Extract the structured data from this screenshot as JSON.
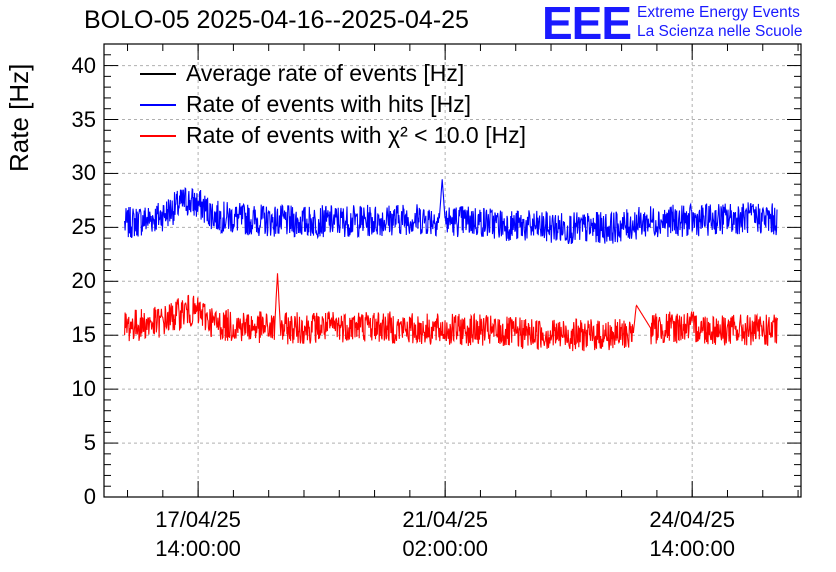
{
  "chart_data": {
    "type": "line",
    "title": "BOLO-05 2025-04-16--2025-04-25",
    "ylabel": "Rate [Hz]",
    "ylim": [
      0,
      42
    ],
    "yticks": [
      0,
      5,
      10,
      15,
      20,
      25,
      30,
      35,
      40
    ],
    "x_range": [
      "2025-04-16 06:00",
      "2025-04-26 03:00"
    ],
    "x_data_range": [
      "2025-04-16 13:00",
      "2025-04-25 19:00"
    ],
    "xticks": [
      {
        "date": "17/04/25",
        "time": "14:00:00"
      },
      {
        "date": "21/04/25",
        "time": "02:00:00"
      },
      {
        "date": "24/04/25",
        "time": "14:00:00"
      }
    ],
    "xtick_datetimes": [
      "2025-04-17 14:00",
      "2025-04-21 02:00",
      "2025-04-24 14:00"
    ],
    "grid": true,
    "legend_position": "top-left",
    "series": [
      {
        "name": "Average rate of events [Hz]",
        "color": "#000000",
        "values": []
      },
      {
        "name": "Rate of events with hits [Hz]",
        "color": "#0000ff",
        "x": [
          "2025-04-16 13:00",
          "2025-04-17 01:00",
          "2025-04-17 06:00",
          "2025-04-17 10:00",
          "2025-04-17 15:00",
          "2025-04-17 20:00",
          "2025-04-18 08:00",
          "2025-04-19 00:00",
          "2025-04-19 12:00",
          "2025-04-20 00:00",
          "2025-04-20 12:00",
          "2025-04-21 00:00",
          "2025-04-21 01:00",
          "2025-04-21 02:00",
          "2025-04-21 12:00",
          "2025-04-22 00:00",
          "2025-04-22 12:00",
          "2025-04-23 00:00",
          "2025-04-23 12:00",
          "2025-04-24 00:00",
          "2025-04-24 12:00",
          "2025-04-25 00:00",
          "2025-04-25 12:00",
          "2025-04-25 19:00"
        ],
        "values": [
          25.3,
          26.0,
          26.8,
          27.5,
          27.0,
          26.0,
          25.7,
          25.5,
          25.6,
          25.6,
          25.8,
          25.7,
          29.5,
          25.6,
          25.6,
          25.2,
          25.0,
          24.9,
          25.0,
          25.6,
          25.6,
          25.8,
          25.9,
          25.7
        ]
      },
      {
        "name": "Rate of events with χ² < 10.0 [Hz]",
        "color": "#ff0000",
        "x": [
          "2025-04-16 13:00",
          "2025-04-17 01:00",
          "2025-04-17 06:00",
          "2025-04-17 10:00",
          "2025-04-17 15:00",
          "2025-04-17 20:00",
          "2025-04-18 08:00",
          "2025-04-18 16:00",
          "2025-04-18 17:00",
          "2025-04-18 18:00",
          "2025-04-19 12:00",
          "2025-04-20 00:00",
          "2025-04-20 12:00",
          "2025-04-21 00:00",
          "2025-04-21 12:00",
          "2025-04-22 00:00",
          "2025-04-22 12:00",
          "2025-04-23 00:00",
          "2025-04-23 12:00",
          "2025-04-23 18:00",
          "2025-04-23 19:00",
          "2025-04-24 00:00",
          "2025-04-24 12:00",
          "2025-04-25 00:00",
          "2025-04-25 19:00"
        ],
        "values": [
          15.8,
          16.2,
          16.8,
          17.3,
          17.0,
          16.0,
          15.8,
          15.6,
          20.8,
          15.6,
          15.8,
          15.9,
          15.6,
          15.5,
          15.5,
          15.2,
          15.1,
          15.0,
          15.0,
          15.2,
          17.8,
          15.6,
          15.8,
          15.5,
          15.4
        ]
      }
    ]
  },
  "logo": {
    "mark": "EEE",
    "line1": "Extreme Energy Events",
    "line2": "La Scienza nelle Scuole"
  }
}
